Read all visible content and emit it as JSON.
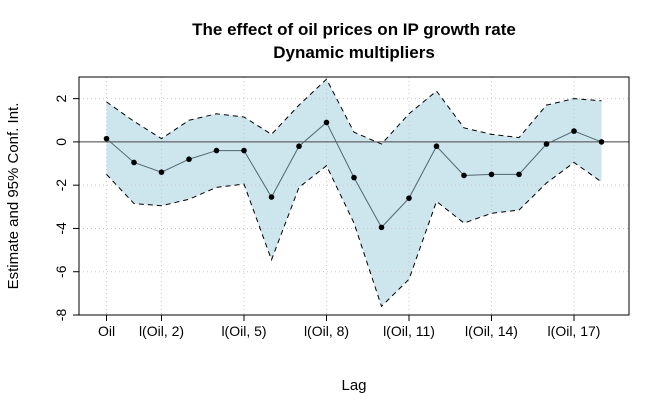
{
  "chart_data": {
    "type": "line",
    "title": "The effect of oil prices on IP growth rate",
    "subtitle": "Dynamic multipliers",
    "xlabel": "Lag",
    "ylabel": "Estimate and 95% Conf. Int.",
    "x_tick_labels": [
      "Oil",
      "l(Oil, 2)",
      "l(Oil, 5)",
      "l(Oil, 8)",
      "l(Oil, 11)",
      "l(Oil, 14)",
      "l(Oil, 17)"
    ],
    "x_tick_positions": [
      0,
      2,
      5,
      8,
      11,
      14,
      17
    ],
    "x": [
      0,
      1,
      2,
      3,
      4,
      5,
      6,
      7,
      8,
      9,
      10,
      11,
      12,
      13,
      14,
      15,
      16,
      17,
      18
    ],
    "xlim": [
      -1,
      19
    ],
    "ylim": [
      -8,
      3
    ],
    "y_ticks": [
      -8,
      -6,
      -4,
      -2,
      0,
      2
    ],
    "grid": true,
    "series": [
      {
        "values": [
          0.15,
          -0.95,
          -1.4,
          -0.8,
          -0.4,
          -0.4,
          -2.55,
          -0.2,
          0.9,
          -1.65,
          -3.95,
          -2.6,
          -0.2,
          -1.55,
          -1.5,
          -1.5,
          -0.1,
          0.5,
          0.0
        ]
      }
    ],
    "upper": [
      1.85,
      0.95,
      0.15,
      1.0,
      1.3,
      1.15,
      0.35,
      1.7,
      2.9,
      0.45,
      -0.1,
      1.3,
      2.35,
      0.65,
      0.35,
      0.2,
      1.7,
      2.0,
      1.9
    ],
    "lower": [
      -1.5,
      -2.85,
      -2.95,
      -2.65,
      -2.1,
      -1.95,
      -5.45,
      -2.1,
      -1.1,
      -3.75,
      -7.6,
      -6.35,
      -2.75,
      -3.75,
      -3.3,
      -3.15,
      -1.9,
      -0.95,
      -1.85
    ],
    "reference_line": 0,
    "colors": {
      "band": "#cde6ee",
      "line": "#52666b",
      "points": "#000000",
      "axis": "#000000",
      "grid": "#c8c8c8"
    }
  }
}
